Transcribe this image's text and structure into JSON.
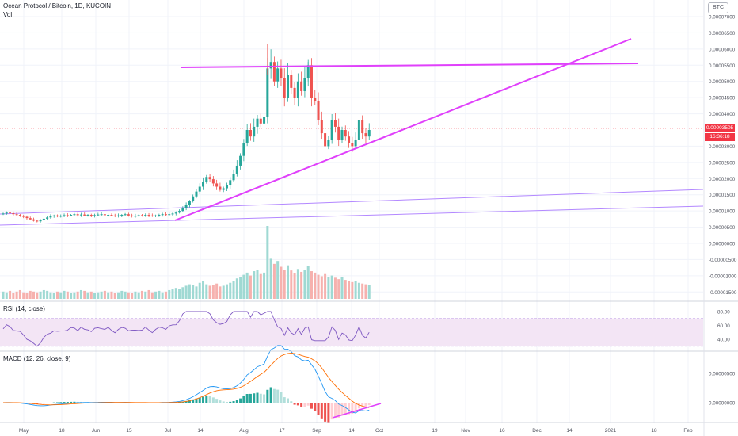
{
  "header": {
    "title": "Ocean Protocol / Bitcoin, 1D, KUCOIN",
    "vol_label": "Vol",
    "currency_badge": "BTC",
    "current_price": "0.00003505",
    "countdown": "16:36:18"
  },
  "colors": {
    "up": "#26a69a",
    "down": "#ef5350",
    "vol_up": "#9fd9d3",
    "vol_down": "#f6b1ae",
    "drawing_magenta": "#e040fb",
    "drawing_violet": "#b388ff",
    "rsi_line": "#7e57c2",
    "rsi_band": "#f3e5f5",
    "macd_line": "#2196f3",
    "signal_line": "#ff6d00",
    "price_tag": "#f23645"
  },
  "chart_data": {
    "type": "candlestick",
    "instrument": "Ocean Protocol / Bitcoin",
    "interval": "1D",
    "exchange": "KUCOIN",
    "price_axis": {
      "ticks": [
        "0.00007000",
        "0.00006500",
        "0.00006000",
        "0.00005500",
        "0.00005000",
        "0.00004500",
        "0.00004000",
        "0.00003505",
        "0.00003000",
        "0.00002500",
        "0.00002000",
        "0.00001500",
        "0.00001000",
        "0.00000500",
        "0.00000000",
        "-0.00000500",
        "-0.00001000",
        "-0.00001500"
      ]
    },
    "time_axis": {
      "ticks": [
        "May",
        "18",
        "Jun",
        "15",
        "Jul",
        "14",
        "Aug",
        "17",
        "Sep",
        "14",
        "Oct",
        "19",
        "Nov",
        "16",
        "Dec",
        "14",
        "2021",
        "18",
        "Feb"
      ]
    },
    "ohlc_trend_closes": [
      9.2e-06,
      9.5e-06,
      9.3e-06,
      9e-06,
      8.8e-06,
      8.5e-06,
      8.2e-06,
      7.8e-06,
      7.4e-06,
      7e-06,
      6.8e-06,
      7.2e-06,
      7.6e-06,
      8e-06,
      8.4e-06,
      8.6e-06,
      8.3e-06,
      8.5e-06,
      8.7e-06,
      8.6e-06,
      8.8e-06,
      9e-06,
      8.7e-06,
      8.9e-06,
      8.6e-06,
      8.8e-06,
      8.5e-06,
      8.7e-06,
      8.9e-06,
      9e-06,
      8.7e-06,
      8.8e-06,
      8.6e-06,
      8.4e-06,
      8.6e-06,
      8.8e-06,
      9e-06,
      8.6e-06,
      8.4e-06,
      8.5e-06,
      8.7e-06,
      8.6e-06,
      8.8e-06,
      8.6e-06,
      8.4e-06,
      8.6e-06,
      8.8e-06,
      9e-06,
      8.8e-06,
      9e-06,
      9.2e-06,
      9.5e-06,
      1e-05,
      1.08e-05,
      1.18e-05,
      1.3e-05,
      1.45e-05,
      1.6e-05,
      1.75e-05,
      1.9e-05,
      2.05e-05,
      1.98e-05,
      1.85e-05,
      1.75e-05,
      1.65e-05,
      1.7e-05,
      1.8e-05,
      1.95e-05,
      2.15e-05,
      2.4e-05,
      2.7e-05,
      3.1e-05,
      3.5e-05,
      3.3e-05,
      3.6e-05,
      3.85e-05,
      3.7e-05,
      3.9e-05,
      5.4e-05,
      5.6e-05,
      5e-05,
      5.4e-05,
      5.1e-05,
      4.5e-05,
      5.2e-05,
      4.8e-05,
      4.5e-05,
      5e-05,
      4.7e-05,
      5.1e-05,
      5.5e-05,
      4.5e-05,
      4.4e-05,
      3.8e-05,
      3.4e-05,
      3e-05,
      3.2e-05,
      3.8e-05,
      3.6e-05,
      3.2e-05,
      3.5e-05,
      3.3e-05,
      3.1e-05,
      3e-05,
      3.2e-05,
      3.8e-05,
      3.4e-05,
      3.3e-05,
      3.5e-05
    ],
    "volume_rel": [
      0.1,
      0.09,
      0.11,
      0.08,
      0.1,
      0.12,
      0.09,
      0.08,
      0.11,
      0.1,
      0.09,
      0.1,
      0.12,
      0.11,
      0.09,
      0.08,
      0.1,
      0.09,
      0.11,
      0.1,
      0.08,
      0.09,
      0.1,
      0.12,
      0.11,
      0.09,
      0.1,
      0.08,
      0.09,
      0.1,
      0.11,
      0.09,
      0.1,
      0.08,
      0.09,
      0.11,
      0.1,
      0.09,
      0.08,
      0.1,
      0.09,
      0.11,
      0.1,
      0.12,
      0.09,
      0.1,
      0.11,
      0.09,
      0.1,
      0.12,
      0.13,
      0.15,
      0.14,
      0.16,
      0.18,
      0.2,
      0.19,
      0.17,
      0.22,
      0.24,
      0.2,
      0.18,
      0.19,
      0.21,
      0.17,
      0.18,
      0.2,
      0.22,
      0.25,
      0.28,
      0.3,
      0.33,
      0.36,
      0.32,
      0.38,
      0.4,
      0.34,
      0.36,
      1.0,
      0.55,
      0.48,
      0.52,
      0.44,
      0.4,
      0.46,
      0.39,
      0.35,
      0.41,
      0.37,
      0.4,
      0.45,
      0.38,
      0.36,
      0.33,
      0.31,
      0.34,
      0.3,
      0.32,
      0.29,
      0.27,
      0.3,
      0.26,
      0.24,
      0.23,
      0.25,
      0.22,
      0.21,
      0.2,
      0.19
    ],
    "rsi": {
      "label": "RSI (14, close)",
      "ticks": [
        "80.00",
        "60.00",
        "40.00"
      ],
      "band": [
        30,
        70
      ]
    },
    "macd": {
      "label": "MACD (12, 26, close, 9)",
      "ticks": [
        "0.00000500",
        "0.00000000"
      ]
    },
    "drawings": {
      "resistance_level": 5.48e-05,
      "ascending_trendline": [
        [
          7e-06
        ],
        [
          6.3e-05
        ]
      ],
      "channel_lines": 2
    }
  }
}
